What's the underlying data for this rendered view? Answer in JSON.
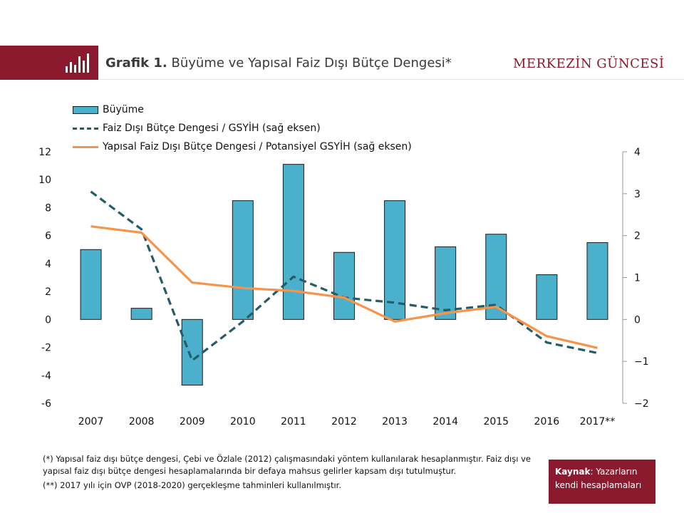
{
  "header": {
    "title_prefix": "Grafik 1.",
    "title": "Büyüme ve Yapısal Faiz Dışı Bütçe Dengesi*",
    "brand": "MERKEZİN GÜNCESİ",
    "icon": "bar-chart-icon"
  },
  "colors": {
    "accent": "#8b1a2e",
    "bar": "#4ab0cc",
    "dashed_series": "#265c66",
    "line_series": "#f7944a"
  },
  "chart_data": {
    "type": "bar",
    "categories": [
      "2007",
      "2008",
      "2009",
      "2010",
      "2011",
      "2012",
      "2013",
      "2014",
      "2015",
      "2016",
      "2017**"
    ],
    "series": [
      {
        "name": "Büyüme",
        "type": "bar",
        "axis": "left",
        "values": [
          5.0,
          0.8,
          -4.7,
          8.5,
          11.1,
          4.8,
          8.5,
          5.2,
          6.1,
          3.2,
          5.5
        ]
      },
      {
        "name": "Faiz Dışı Bütçe Dengesi / GSYİH (sağ eksen)",
        "type": "line",
        "style": "dashed",
        "axis": "right",
        "values": [
          3.05,
          2.15,
          -0.98,
          -0.05,
          1.02,
          0.52,
          0.4,
          0.22,
          0.35,
          -0.55,
          -0.8
        ]
      },
      {
        "name": "Yapısal Faiz Dışı Bütçe Dengesi / Potansiyel GSYİH (sağ eksen)",
        "type": "line",
        "style": "solid",
        "axis": "right",
        "values": [
          2.22,
          2.07,
          0.88,
          0.75,
          0.68,
          0.52,
          -0.05,
          0.15,
          0.3,
          -0.4,
          -0.68
        ]
      }
    ],
    "y_left": {
      "lim": [
        -6,
        12
      ],
      "ticks": [
        "-6",
        "-4",
        "-2",
        "0",
        "2",
        "4",
        "6",
        "8",
        "10",
        "12"
      ]
    },
    "y_right": {
      "lim": [
        -2,
        4
      ],
      "ticks": [
        "−2",
        "−1",
        "0",
        "1",
        "2",
        "3",
        "4"
      ]
    },
    "legend_position": "top-left",
    "grid": false
  },
  "legend": [
    {
      "label": "Büyüme"
    },
    {
      "label": "Faiz Dışı Bütçe Dengesi / GSYİH (sağ eksen)"
    },
    {
      "label": "Yapısal Faiz Dışı Bütçe Dengesi / Potansiyel GSYİH (sağ eksen)"
    }
  ],
  "footnotes": [
    "(*) Yapısal faiz dışı bütçe dengesi, Çebi ve Özlale (2012) çalışmasındaki yöntem kullanılarak hesaplanmıştır. Faiz dışı ve yapısal faiz dışı bütçe dengesi hesaplamalarında bir defaya mahsus gelirler kapsam dışı tutulmuştur.",
    "(**) 2017 yılı için OVP (2018-2020) gerçekleşme tahminleri kullanılmıştır."
  ],
  "source": {
    "label": "Kaynak",
    "text": ": Yazarların kendi hesaplamaları"
  }
}
